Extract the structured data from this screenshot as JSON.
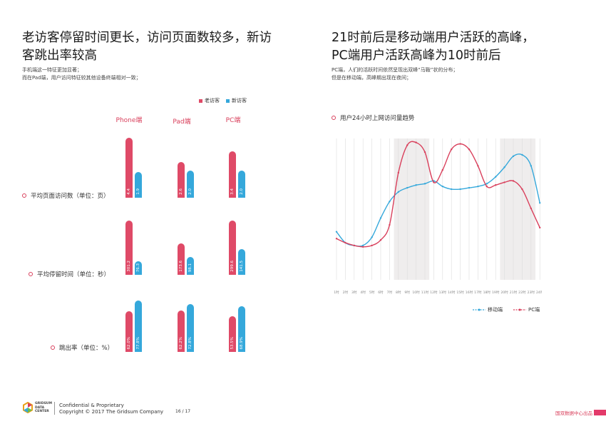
{
  "left": {
    "title_line1": "老访客停留时间更长，访问页面数较多，新访",
    "title_line2": "客跳出率较高",
    "sub_line1": "手机端这一特征更加显著；",
    "sub_line2": "而在Pad端，用户访问特征较其他设备终端相对一致；",
    "legend_old": "老访客",
    "legend_new": "新访客",
    "devices": [
      "Phone端",
      "Pad端",
      "PC端"
    ],
    "metrics": [
      "平均页面访问数（单位：页）",
      "平均停留时间（单位：秒）",
      "跳出率（单位：%）"
    ]
  },
  "right": {
    "title_line1": "21时前后是移动端用户活跃的高峰，",
    "title_line2": "PC端用户活跃高峰为10时前后",
    "sub_line1": "PC端，人们的活跃时间依然呈现出双峰“马鞍”状的分布；",
    "sub_line2": "但是在移动端，高峰期出现在夜间；",
    "chart_title": "用户24小时上网访问量趋势",
    "legend_mobile": "移动端",
    "legend_pc": "PC端"
  },
  "footer": {
    "logo_line1": "GRIDSUM",
    "logo_line2": "DATA",
    "logo_line3": "CENTER",
    "conf": "Confidential & Proprietary",
    "copyright": "Copyright © 2017 The Gridsum Company",
    "page": "16 / 17",
    "brand": "国双数据中心出品"
  },
  "colors": {
    "old": "#df4a67",
    "new": "#35a8db",
    "mobile": "#35a8db",
    "pc": "#d9405c"
  },
  "chart_data": [
    {
      "type": "bar",
      "title": "平均页面访问数（单位：页）",
      "categories": [
        "Phone端",
        "Pad端",
        "PC端"
      ],
      "series": [
        {
          "name": "老访客",
          "values": [
            4.4,
            2.6,
            3.4
          ],
          "labels": [
            "4.4",
            "2.6",
            "3.4"
          ]
        },
        {
          "name": "新访客",
          "values": [
            1.9,
            2.0,
            2.0
          ],
          "labels": [
            "1.9",
            "2.0",
            "2.0"
          ]
        }
      ]
    },
    {
      "type": "bar",
      "title": "平均停留时间（单位：秒）",
      "categories": [
        "Phone端",
        "Pad端",
        "PC端"
      ],
      "series": [
        {
          "name": "老访客",
          "values": [
            301.2,
            173.6,
            299.6
          ],
          "labels": [
            "301.2",
            "173.6",
            "299.6"
          ]
        },
        {
          "name": "新访客",
          "values": [
            76.3,
            98.1,
            141.5
          ],
          "labels": [
            "76.3",
            "98.1",
            "141.5"
          ]
        }
      ]
    },
    {
      "type": "bar",
      "title": "跳出率（单位：%）",
      "categories": [
        "Phone端",
        "Pad端",
        "PC端"
      ],
      "series": [
        {
          "name": "老访客",
          "values": [
            62.0,
            62.2,
            53.5
          ],
          "labels": [
            "62.0%",
            "62.2%",
            "53.5%"
          ]
        },
        {
          "name": "新访客",
          "values": [
            77.8,
            72.8,
            68.9
          ],
          "labels": [
            "77.8%",
            "72.8%",
            "68.9%"
          ]
        }
      ]
    },
    {
      "type": "line",
      "title": "用户24小时上网访问量趋势",
      "x": [
        "1时",
        "2时",
        "3时",
        "4时",
        "5时",
        "6时",
        "7时",
        "8时",
        "9时",
        "10时",
        "11时",
        "12时",
        "13时",
        "14时",
        "15时",
        "16时",
        "17时",
        "18时",
        "19时",
        "20时",
        "21时",
        "22时",
        "23时",
        "24时"
      ],
      "series": [
        {
          "name": "移动端",
          "values": [
            0.35,
            0.27,
            0.25,
            0.25,
            0.31,
            0.45,
            0.57,
            0.64,
            0.67,
            0.69,
            0.7,
            0.72,
            0.68,
            0.66,
            0.66,
            0.67,
            0.68,
            0.7,
            0.75,
            0.82,
            0.9,
            0.91,
            0.83,
            0.56
          ]
        },
        {
          "name": "PC端",
          "values": [
            0.3,
            0.27,
            0.25,
            0.24,
            0.25,
            0.29,
            0.4,
            0.78,
            0.98,
            1.0,
            0.93,
            0.71,
            0.8,
            0.95,
            0.99,
            0.95,
            0.83,
            0.68,
            0.69,
            0.71,
            0.72,
            0.66,
            0.52,
            0.38
          ]
        }
      ],
      "shaded_ranges": [
        [
          "8时",
          "11时"
        ],
        [
          "20时",
          "23时"
        ]
      ],
      "ylim": [
        0,
        1.05
      ]
    }
  ]
}
